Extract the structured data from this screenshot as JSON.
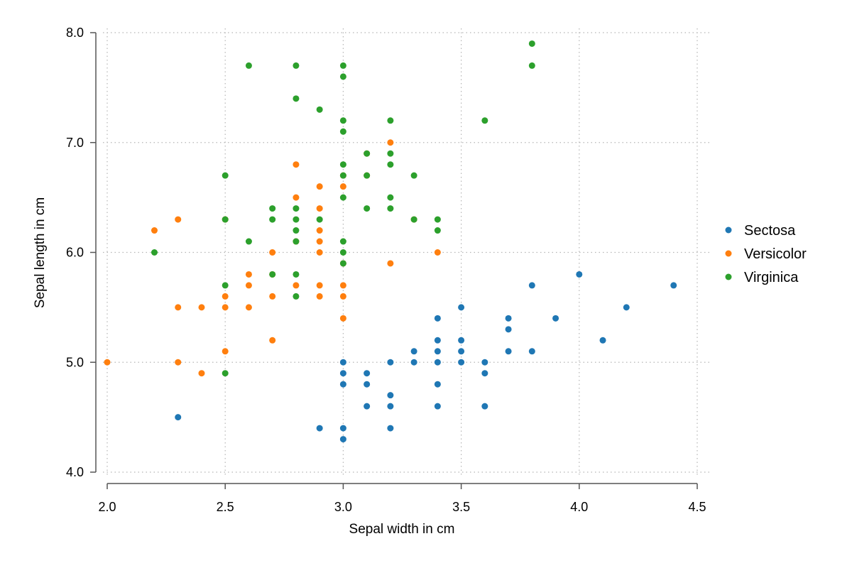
{
  "chart_data": {
    "type": "scatter",
    "title": "",
    "xlabel": "Sepal width in cm",
    "ylabel": "Sepal length in cm",
    "xlim": [
      2.0,
      4.5
    ],
    "ylim": [
      4.0,
      8.0
    ],
    "xticks": [
      "2.0",
      "2.5",
      "3.0",
      "3.5",
      "4.0",
      "4.5"
    ],
    "yticks": [
      "4.0",
      "5.0",
      "6.0",
      "7.0",
      "8.0"
    ],
    "grid": true,
    "legend_position": "right",
    "series": [
      {
        "name": "Sectosa",
        "color": "#1f77b4",
        "points": [
          [
            2.3,
            4.5
          ],
          [
            2.9,
            4.4
          ],
          [
            3.0,
            4.4
          ],
          [
            3.0,
            4.3
          ],
          [
            3.0,
            5.0
          ],
          [
            3.0,
            4.9
          ],
          [
            3.0,
            4.8
          ],
          [
            3.1,
            4.9
          ],
          [
            3.1,
            4.8
          ],
          [
            3.1,
            4.6
          ],
          [
            3.2,
            5.0
          ],
          [
            3.2,
            4.7
          ],
          [
            3.2,
            4.6
          ],
          [
            3.2,
            4.4
          ],
          [
            3.3,
            5.1
          ],
          [
            3.3,
            5.0
          ],
          [
            3.4,
            5.4
          ],
          [
            3.4,
            5.2
          ],
          [
            3.4,
            5.1
          ],
          [
            3.4,
            5.0
          ],
          [
            3.4,
            4.8
          ],
          [
            3.4,
            4.6
          ],
          [
            3.5,
            5.5
          ],
          [
            3.5,
            5.2
          ],
          [
            3.5,
            5.1
          ],
          [
            3.5,
            5.0
          ],
          [
            3.6,
            5.0
          ],
          [
            3.6,
            4.9
          ],
          [
            3.6,
            4.6
          ],
          [
            3.7,
            5.4
          ],
          [
            3.7,
            5.3
          ],
          [
            3.7,
            5.1
          ],
          [
            3.8,
            5.7
          ],
          [
            3.8,
            5.1
          ],
          [
            3.9,
            5.4
          ],
          [
            4.0,
            5.8
          ],
          [
            4.1,
            5.2
          ],
          [
            4.2,
            5.5
          ],
          [
            4.4,
            5.7
          ]
        ]
      },
      {
        "name": "Versicolor",
        "color": "#ff7f0e",
        "points": [
          [
            2.0,
            5.0
          ],
          [
            2.2,
            6.2
          ],
          [
            2.3,
            6.3
          ],
          [
            2.3,
            5.5
          ],
          [
            2.3,
            5.0
          ],
          [
            2.4,
            5.5
          ],
          [
            2.4,
            4.9
          ],
          [
            2.5,
            6.3
          ],
          [
            2.5,
            5.6
          ],
          [
            2.5,
            5.5
          ],
          [
            2.5,
            5.1
          ],
          [
            2.6,
            5.8
          ],
          [
            2.6,
            5.7
          ],
          [
            2.6,
            5.5
          ],
          [
            2.7,
            6.0
          ],
          [
            2.7,
            5.8
          ],
          [
            2.7,
            5.6
          ],
          [
            2.7,
            5.2
          ],
          [
            2.8,
            6.8
          ],
          [
            2.8,
            6.5
          ],
          [
            2.8,
            6.1
          ],
          [
            2.8,
            5.7
          ],
          [
            2.9,
            6.6
          ],
          [
            2.9,
            6.4
          ],
          [
            2.9,
            6.2
          ],
          [
            2.9,
            6.1
          ],
          [
            2.9,
            6.0
          ],
          [
            2.9,
            5.7
          ],
          [
            2.9,
            5.6
          ],
          [
            3.0,
            6.7
          ],
          [
            3.0,
            6.6
          ],
          [
            3.0,
            5.9
          ],
          [
            3.0,
            5.7
          ],
          [
            3.0,
            5.6
          ],
          [
            3.0,
            5.4
          ],
          [
            3.1,
            6.9
          ],
          [
            3.1,
            6.7
          ],
          [
            3.2,
            7.0
          ],
          [
            3.2,
            5.9
          ],
          [
            3.3,
            6.3
          ],
          [
            3.4,
            6.0
          ]
        ]
      },
      {
        "name": "Virginica",
        "color": "#2ca02c",
        "points": [
          [
            2.2,
            6.0
          ],
          [
            2.5,
            6.7
          ],
          [
            2.5,
            6.3
          ],
          [
            2.5,
            5.7
          ],
          [
            2.5,
            4.9
          ],
          [
            2.6,
            7.7
          ],
          [
            2.6,
            6.1
          ],
          [
            2.7,
            6.4
          ],
          [
            2.7,
            6.3
          ],
          [
            2.7,
            5.8
          ],
          [
            2.8,
            7.7
          ],
          [
            2.8,
            7.4
          ],
          [
            2.8,
            6.4
          ],
          [
            2.8,
            6.3
          ],
          [
            2.8,
            6.2
          ],
          [
            2.8,
            6.1
          ],
          [
            2.8,
            5.8
          ],
          [
            2.8,
            5.6
          ],
          [
            2.9,
            7.3
          ],
          [
            2.9,
            6.3
          ],
          [
            3.0,
            7.7
          ],
          [
            3.0,
            7.6
          ],
          [
            3.0,
            7.2
          ],
          [
            3.0,
            7.1
          ],
          [
            3.0,
            6.8
          ],
          [
            3.0,
            6.7
          ],
          [
            3.0,
            6.5
          ],
          [
            3.0,
            6.1
          ],
          [
            3.0,
            6.0
          ],
          [
            3.0,
            5.9
          ],
          [
            3.1,
            6.9
          ],
          [
            3.1,
            6.7
          ],
          [
            3.1,
            6.4
          ],
          [
            3.2,
            7.2
          ],
          [
            3.2,
            6.9
          ],
          [
            3.2,
            6.8
          ],
          [
            3.2,
            6.5
          ],
          [
            3.2,
            6.4
          ],
          [
            3.3,
            6.7
          ],
          [
            3.3,
            6.3
          ],
          [
            3.4,
            6.3
          ],
          [
            3.4,
            6.2
          ],
          [
            3.6,
            7.2
          ],
          [
            3.8,
            7.9
          ],
          [
            3.8,
            7.7
          ]
        ]
      }
    ]
  }
}
